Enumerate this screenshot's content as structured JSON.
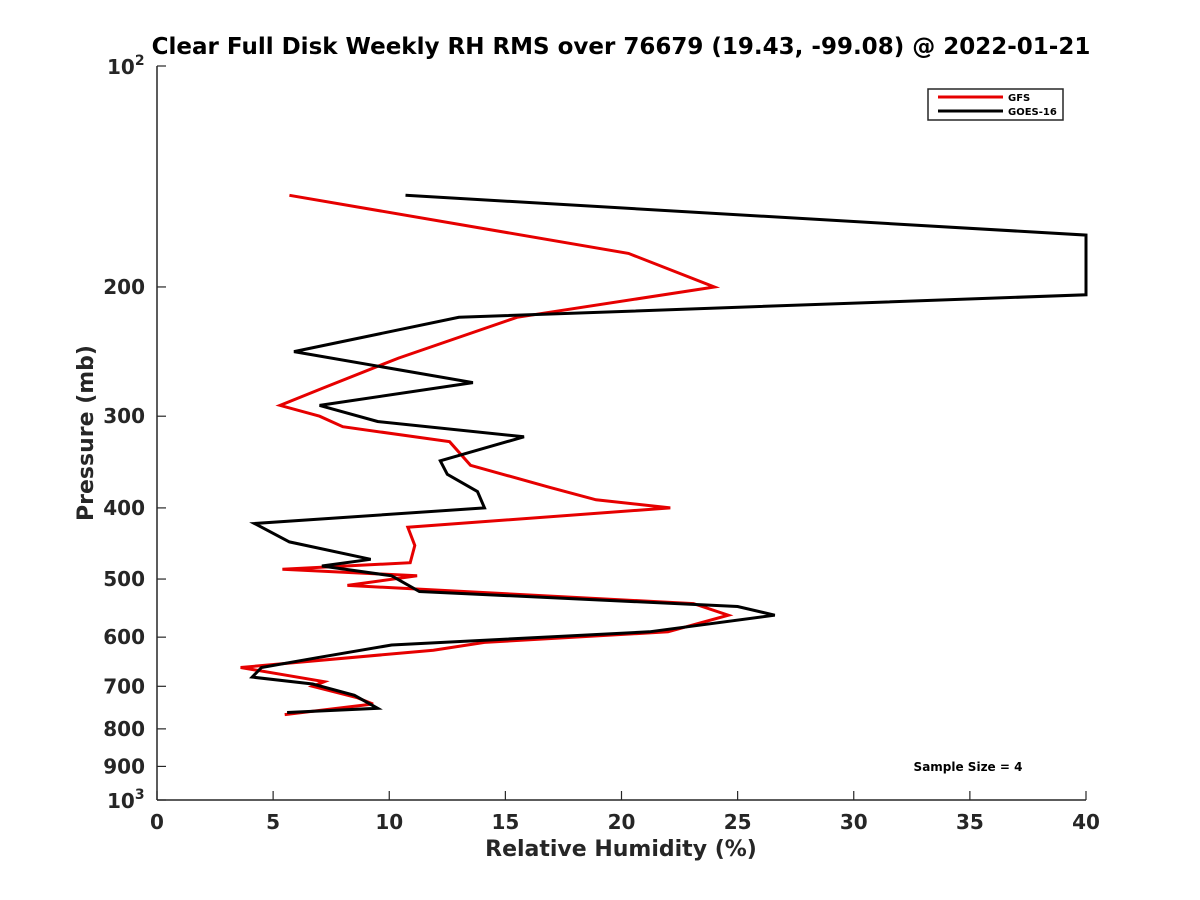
{
  "chart_data": {
    "type": "line",
    "title": "Clear Full Disk Weekly RH RMS over 76679 (19.43, -99.08) @ 2022-01-21",
    "xlabel": "Relative Humidity (%)",
    "ylabel": "Pressure (mb)",
    "xlim": [
      0,
      40
    ],
    "ylim": [
      100,
      1000
    ],
    "yscale": "log",
    "y_reversed": true,
    "grid": false,
    "legend_position": "top-right",
    "x_ticks": [
      "0",
      "5",
      "10",
      "15",
      "20",
      "25",
      "30",
      "35",
      "40"
    ],
    "y_ticks": [
      {
        "value": 100,
        "base": "10",
        "exp": "2"
      },
      {
        "value": 200,
        "label": "200"
      },
      {
        "value": 300,
        "label": "300"
      },
      {
        "value": 400,
        "label": "400"
      },
      {
        "value": 500,
        "label": "500"
      },
      {
        "value": 600,
        "label": "600"
      },
      {
        "value": 700,
        "label": "700"
      },
      {
        "value": 800,
        "label": "800"
      },
      {
        "value": 900,
        "label": "900"
      },
      {
        "value": 1000,
        "base": "10",
        "exp": "3"
      }
    ],
    "annotation": "Sample Size = 4",
    "series": [
      {
        "name": "GFS",
        "color": "#e60000",
        "points": [
          [
            5.7,
            150
          ],
          [
            20.3,
            180
          ],
          [
            24.0,
            200
          ],
          [
            15.5,
            220
          ],
          [
            10.4,
            250
          ],
          [
            7.1,
            275
          ],
          [
            5.3,
            290
          ],
          [
            7.0,
            300
          ],
          [
            8.0,
            310
          ],
          [
            12.6,
            325
          ],
          [
            13.5,
            350
          ],
          [
            16.9,
            375
          ],
          [
            18.9,
            390
          ],
          [
            22.1,
            400
          ],
          [
            10.8,
            425
          ],
          [
            11.1,
            450
          ],
          [
            10.9,
            475
          ],
          [
            5.4,
            485
          ],
          [
            11.2,
            495
          ],
          [
            8.2,
            510
          ],
          [
            23.1,
            540
          ],
          [
            24.6,
            560
          ],
          [
            22.0,
            590
          ],
          [
            14.1,
            610
          ],
          [
            11.9,
            625
          ],
          [
            3.6,
            660
          ],
          [
            7.2,
            690
          ],
          [
            6.7,
            700
          ],
          [
            8.6,
            725
          ],
          [
            9.3,
            740
          ],
          [
            5.5,
            765
          ]
        ]
      },
      {
        "name": "GOES-16",
        "color": "#000000",
        "points": [
          [
            10.7,
            150
          ],
          [
            40.0,
            170
          ],
          [
            40.0,
            205
          ],
          [
            13.0,
            220
          ],
          [
            5.9,
            245
          ],
          [
            13.6,
            270
          ],
          [
            7.0,
            290
          ],
          [
            9.5,
            305
          ],
          [
            15.8,
            320
          ],
          [
            12.2,
            345
          ],
          [
            12.5,
            360
          ],
          [
            13.8,
            380
          ],
          [
            14.1,
            400
          ],
          [
            4.2,
            420
          ],
          [
            5.7,
            445
          ],
          [
            9.2,
            470
          ],
          [
            7.1,
            480
          ],
          [
            10.1,
            495
          ],
          [
            11.3,
            520
          ],
          [
            25.0,
            545
          ],
          [
            26.6,
            560
          ],
          [
            21.2,
            590
          ],
          [
            10.1,
            615
          ],
          [
            6.9,
            640
          ],
          [
            4.5,
            660
          ],
          [
            4.1,
            680
          ],
          [
            6.7,
            695
          ],
          [
            8.5,
            720
          ],
          [
            9.5,
            750
          ],
          [
            5.6,
            760
          ]
        ]
      }
    ]
  }
}
